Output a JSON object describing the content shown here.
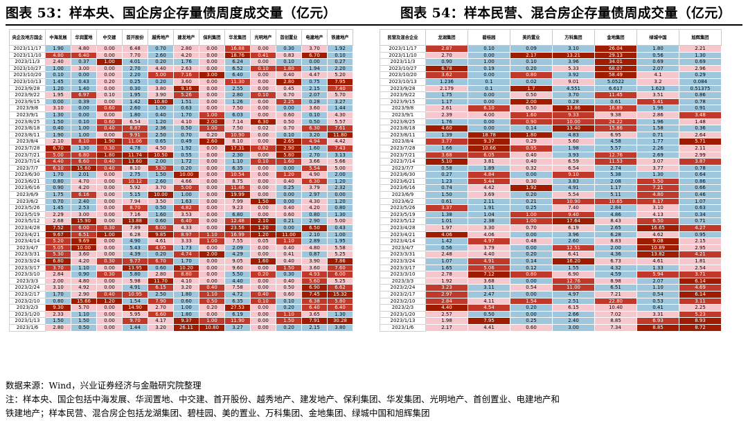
{
  "titles": {
    "left": "图表 53：样本央、国企房企存量债周度成交量（亿元）",
    "right": "图表 54：样本民营、混合房企存量债周成交量（亿元）"
  },
  "left_table": {
    "headers": [
      "央企及地方国企",
      "中海发展",
      "华润置地",
      "中交建",
      "首开股份",
      "越秀地产",
      "建发地产",
      "保利集团",
      "华发集团",
      "光明地产",
      "首创置业",
      "电建地产",
      "铁建地产"
    ],
    "rows": [
      [
        "2023/11/17",
        "1.90",
        "4.80",
        "0.00",
        "6.48",
        "0.70",
        "2.80",
        "0.00",
        "16.88",
        "0.00",
        "0.30",
        "3.70",
        "1.92"
      ],
      [
        "2023/11/10",
        "4.80",
        "6.40",
        "0.00",
        "7.70",
        "2.60",
        "4.20",
        "0.00",
        "18.76",
        "0.41",
        "0.83",
        "6.70",
        "0.10"
      ],
      [
        "2023/11/3",
        "2.40",
        "0.37",
        "1.00",
        "4.01",
        "0.20",
        "1.76",
        "0.00",
        "6.24",
        "0.00",
        "0.10",
        "0.00",
        "0.27"
      ],
      [
        "2023/10/27",
        "1.00",
        "3.00",
        "0.00",
        "2.70",
        "4.40",
        "2.63",
        "0.00",
        "6.52",
        "0.10",
        "1.80",
        "1.94",
        "2.20"
      ],
      [
        "2023/10/20",
        "0.10",
        "0.00",
        "0.00",
        "2.20",
        "5.00",
        "7.16",
        "3.00",
        "6.40",
        "0.00",
        "0.40",
        "4.47",
        "5.20"
      ],
      [
        "2023/10/13",
        "1.45",
        "0.43",
        "0.20",
        "0.25",
        "0.20",
        "3.60",
        "0.00",
        "11.30",
        "0.00",
        "2.80",
        "0.75",
        "7.95"
      ],
      [
        "2023/9/28",
        "1.20",
        "1.40",
        "0.00",
        "0.30",
        "3.80",
        "9.16",
        "0.00",
        "2.55",
        "0.00",
        "0.45",
        "2.15",
        "7.40"
      ],
      [
        "2023/9/22",
        "1.95",
        "6.97",
        "0.10",
        "1.95",
        "3.90",
        "5.26",
        "0.00",
        "2.80",
        "0.10",
        "0.70",
        "2.07",
        "5.70"
      ],
      [
        "2023/9/15",
        "0.00",
        "0.39",
        "0.00",
        "1.42",
        "10.80",
        "1.51",
        "0.00",
        "1.26",
        "0.00",
        "2.25",
        "0.28",
        "3.27"
      ],
      [
        "2023/9/8",
        "3.10",
        "0.00",
        "0.60",
        "2.60",
        "1.00",
        "0.63",
        "0.00",
        "7.50",
        "0.00",
        "0.00",
        "3.60",
        "1.44"
      ],
      [
        "2023/9/1",
        "1.30",
        "0.00",
        "0.00",
        "1.80",
        "0.40",
        "1.70",
        "1.00",
        "6.03",
        "0.00",
        "0.60",
        "0.10",
        "4.30"
      ],
      [
        "2023/8/25",
        "1.50",
        "0.10",
        "0.60",
        "6.54",
        "1.20",
        "4.10",
        "2.00",
        "7.14",
        "6.30",
        "0.50",
        "0.50",
        "5.57"
      ],
      [
        "2023/8/18",
        "0.40",
        "1.00",
        "0.40",
        "8.87",
        "2.36",
        "0.50",
        "1.00",
        "7.50",
        "0.02",
        "0.70",
        "6.30",
        "7.61"
      ],
      [
        "2023/8/11",
        "1.90",
        "1.00",
        "0.00",
        "9.91",
        "2.50",
        "0.70",
        "0.20",
        "10.90",
        "0.00",
        "0.10",
        "3.20",
        "11.80"
      ],
      [
        "2023/8/4",
        "2.10",
        "8.10",
        "1.90",
        "11.06",
        "0.65",
        "0.49",
        "2.60",
        "8.10",
        "0.00",
        "2.65",
        "4.94",
        "4.42"
      ],
      [
        "2023/7/28",
        "6.70",
        "1.30",
        "0.30",
        "4.78",
        "4.50",
        "1.92",
        "0.00",
        "17.31",
        "0.82",
        "2.90",
        "1.60",
        "7.43"
      ],
      [
        "2023/7/21",
        "5.00",
        "6.80",
        "1.80",
        "11.74",
        "10.50",
        "0.55",
        "0.00",
        "2.30",
        "0.00",
        "5.80",
        "2.70",
        "3.13"
      ],
      [
        "2023/7/14",
        "4.40",
        "6.60",
        "0.40",
        "13.60",
        "2.00",
        "1.72",
        "0.00",
        "1.10",
        "0.10",
        "1.60",
        "3.66",
        "5.66"
      ],
      [
        "2023/7/7",
        "6.10",
        "15.60",
        "0.40",
        "8.10",
        "5.30",
        "0.20",
        "0.00",
        "6.35",
        "0.00",
        "0.00",
        "5.54",
        "5.00"
      ],
      [
        "2023/6/30",
        "1.70",
        "2.01",
        "0.00",
        "2.75",
        "1.50",
        "10.00",
        "0.00",
        "10.54",
        "0.00",
        "1.20",
        "4.90",
        "2.00"
      ],
      [
        "2023/6/21",
        "0.80",
        "4.70",
        "0.00",
        "10.12",
        "2.60",
        "4.66",
        "0.00",
        "8.75",
        "0.00",
        "0.40",
        "6.30",
        "1.20"
      ],
      [
        "2023/6/16",
        "0.90",
        "4.20",
        "0.00",
        "5.92",
        "3.70",
        "5.00",
        "0.00",
        "11.46",
        "0.00",
        "0.25",
        "3.79",
        "2.32"
      ],
      [
        "2023/6/9",
        "1.75",
        "6.16",
        "0.00",
        "5.15",
        "10.00",
        "1.00",
        "0.00",
        "19.99",
        "0.00",
        "0.00",
        "2.97",
        "0.00"
      ],
      [
        "2023/6/2",
        "0.70",
        "2.40",
        "0.00",
        "7.94",
        "3.50",
        "1.63",
        "0.00",
        "7.99",
        "1.50",
        "0.00",
        "4.30",
        "1.20"
      ],
      [
        "2023/5/26",
        "1.45",
        "2.53",
        "0.00",
        "8.70",
        "0.50",
        "4.82",
        "0.00",
        "9.23",
        "0.00",
        "0.40",
        "4.20",
        "0.80"
      ],
      [
        "2023/5/19",
        "2.29",
        "3.00",
        "0.00",
        "7.16",
        "1.60",
        "3.53",
        "0.00",
        "6.80",
        "0.00",
        "0.60",
        "0.80",
        "1.30"
      ],
      [
        "2023/5/12",
        "2.68",
        "15.90",
        "0.00",
        "13.88",
        "0.60",
        "6.40",
        "0.00",
        "12.48",
        "2.10",
        "0.21",
        "2.90",
        "5.00"
      ],
      [
        "2023/4/28",
        "7.52",
        "6.00",
        "0.30",
        "7.89",
        "6.00",
        "4.33",
        "0.00",
        "23.56",
        "1.20",
        "0.00",
        "6.50",
        "0.43"
      ],
      [
        "2023/4/21",
        "9.67",
        "6.51",
        "1.00",
        "6.28",
        "9.85",
        "8.97",
        "1.10",
        "16.99",
        "1.20",
        "11.00",
        "2.10",
        "1.00"
      ],
      [
        "2023/4/14",
        "5.20",
        "9.69",
        "0.00",
        "4.90",
        "4.61",
        "3.33",
        "1.00",
        "7.55",
        "0.05",
        "1.10",
        "2.89",
        "1.95"
      ],
      [
        "2023/4/7",
        "5.05",
        "10.00",
        "0.00",
        "5.43",
        "4.95",
        "1.73",
        "0.00",
        "2.09",
        "0.00",
        "0.40",
        "4.80",
        "5.58"
      ],
      [
        "2023/3/31",
        "5.30",
        "3.60",
        "0.00",
        "4.39",
        "0.20",
        "4.74",
        "2.00",
        "4.29",
        "0.00",
        "0.41",
        "0.87",
        "5.25"
      ],
      [
        "2023/3/24",
        "6.80",
        "4.20",
        "0.30",
        "9.77",
        "6.70",
        "1.70",
        "0.00",
        "9.05",
        "1.60",
        "0.40",
        "3.90",
        "7.86"
      ],
      [
        "2023/3/17",
        "3.70",
        "1.10",
        "0.00",
        "13.95",
        "0.60",
        "10.20",
        "0.00",
        "9.60",
        "0.00",
        "1.50",
        "3.60",
        "7.60"
      ],
      [
        "2023/3/10",
        "2.84",
        "0.90",
        "0.30",
        "5.80",
        "2.80",
        "8.80",
        "0.00",
        "5.50",
        "0.20",
        "0.30",
        "4.93",
        "6.00"
      ],
      [
        "2023/3/3",
        "2.00",
        "4.80",
        "0.00",
        "5.98",
        "11.70",
        "4.10",
        "0.00",
        "4.40",
        "0.00",
        "0.40",
        "5.60",
        "5.25"
      ],
      [
        "2023/2/24",
        "3.10",
        "4.92",
        "0.00",
        "4.91",
        "6.15",
        "3.20",
        "0.40",
        "7.58",
        "0.00",
        "0.50",
        "6.90",
        "6.62"
      ],
      [
        "2023/2/17",
        "1.70",
        "2.90",
        "0.40",
        "10.95",
        "2.50",
        "1.80",
        "1.10",
        "4.72",
        "0.40",
        "0.60",
        "7.45",
        "15.32"
      ],
      [
        "2023/2/10",
        "0.80",
        "15.66",
        "1.20",
        "1.54",
        "7.90",
        "0.60",
        "0.50",
        "6.35",
        "0.10",
        "0.10",
        "6.38",
        "5.80"
      ],
      [
        "2023/2/3",
        "9.30",
        "5.70",
        "0.00",
        "14.90",
        "2.70",
        "1.00",
        "0.20",
        "27.53",
        "0.00",
        "0.20",
        "6.40",
        "6.40"
      ],
      [
        "2023/1/20",
        "2.33",
        "1.10",
        "0.00",
        "5.95",
        "6.60",
        "1.80",
        "0.00",
        "6.19",
        "0.00",
        "1.10",
        "3.65",
        "1.30"
      ],
      [
        "2023/1/13",
        "1.50",
        "1.50",
        "0.00",
        "9.70",
        "4.17",
        "9.37",
        "1.00",
        "11.90",
        "0.00",
        "1.50",
        "7.91",
        "30.28"
      ],
      [
        "2023/1/6",
        "2.80",
        "0.50",
        "0.00",
        "1.44",
        "3.20",
        "26.11",
        "10.80",
        "3.27",
        "0.00",
        "0.20",
        "2.15",
        "3.80"
      ]
    ]
  },
  "right_table": {
    "headers": [
      "民营及混合企业",
      "龙湖集团",
      "碧桂园",
      "美的置业",
      "万科集团",
      "金地集团",
      "绿城中国",
      "旭辉集团"
    ],
    "rows": [
      [
        "2023/11/17",
        "2.87",
        "0.10",
        "0.09",
        "3.10",
        "26.04",
        "1.80",
        "2.21"
      ],
      [
        "2023/11/10",
        "2.70",
        "0.00",
        "2.17",
        "13.21",
        "29.13",
        "0.56",
        "1.30"
      ],
      [
        "2023/11/3",
        "0.90",
        "1.00",
        "0.10",
        "3.96",
        "34.01",
        "0.69",
        "0.69"
      ],
      [
        "2023/10/27",
        "6.78",
        "0.19",
        "0.20",
        "5.33",
        "68.07",
        "2.07",
        "2.96"
      ],
      [
        "2023/10/20",
        "3.62",
        "0.00",
        "0.80",
        "3.92",
        "58.49",
        "4.1",
        "0.29"
      ],
      [
        "2023/10/13",
        "1.236",
        "0.1",
        "0.02",
        "9.01",
        "5.0522",
        "3.2",
        "0.084"
      ],
      [
        "2023/9/28",
        "2.179",
        "0.1",
        "1.7",
        "4.551",
        "6.617",
        "1.623",
        "0.51375"
      ],
      [
        "2023/9/22",
        "1.75",
        "0.00",
        "0.50",
        "3.70",
        "11.45",
        "3.51",
        "0.86"
      ],
      [
        "2023/9/15",
        "1.17",
        "0.00",
        "2.00",
        "0.28",
        "0.61",
        "5.41",
        "0.78"
      ],
      [
        "2023/9/8",
        "2.61",
        "6.10",
        "0.50",
        "13.86",
        "16.89",
        "1.96",
        "0.91"
      ],
      [
        "2023/9/1",
        "2.39",
        "4.00",
        "1.60",
        "9.33",
        "9.38",
        "2.86",
        "3.48"
      ],
      [
        "2023/8/25",
        "1.76",
        "0.00",
        "0.90",
        "10.00",
        "24.22",
        "1.96",
        "1.48"
      ],
      [
        "2023/8/18",
        "4.60",
        "0.00",
        "0.14",
        "13.40",
        "15.86",
        "1.58",
        "0.36"
      ],
      [
        "2023/8/11",
        "1.39",
        "18.78",
        "1.80",
        "4.83",
        "6.95",
        "0.71",
        "2.64"
      ],
      [
        "2023/8/4",
        "3.77",
        "9.37",
        "0.29",
        "5.60",
        "4.58",
        "1.77",
        "5.71"
      ],
      [
        "2023/7/28",
        "1.66",
        "10.66",
        "0.95",
        "1.98",
        "5.57",
        "2.26",
        "2.11"
      ],
      [
        "2023/7/21",
        "3.68",
        "6.05",
        "0.40",
        "3.93",
        "12.76",
        "2.69",
        "2.99"
      ],
      [
        "2023/7/14",
        "5.10",
        "3.81",
        "0.40",
        "6.59",
        "11.53",
        "3.07",
        "3.87"
      ],
      [
        "2023/7/7",
        "0.58",
        "1.89",
        "0.32",
        "6.54",
        "2.74",
        "3.77",
        "0.78"
      ],
      [
        "2023/6/30",
        "0.27",
        "4.84",
        "0.00",
        "9.10",
        "5.38",
        "1.30",
        "0.64"
      ],
      [
        "2023/6/21",
        "1.23",
        "5.44",
        "0.30",
        "3.83",
        "2.08",
        "5.50",
        "0.86"
      ],
      [
        "2023/6/16",
        "0.74",
        "4.42",
        "1.92",
        "4.91",
        "1.17",
        "7.21",
        "0.66"
      ],
      [
        "2023/6/9",
        "1.50",
        "3.69",
        "0.20",
        "5.54",
        "5.11",
        "4.80",
        "0.46"
      ],
      [
        "2023/6/2",
        "0.61",
        "2.11",
        "0.21",
        "10.90",
        "10.65",
        "8.17",
        "1.07"
      ],
      [
        "2023/5/26",
        "3.37",
        "1.91",
        "0.25",
        "7.40",
        "2.84",
        "3.10",
        "0.63"
      ],
      [
        "2023/5/19",
        "1.38",
        "1.04",
        "1.00",
        "9.40",
        "4.86",
        "4.13",
        "0.34"
      ],
      [
        "2023/5/12",
        "1.01",
        "2.38",
        "1.00",
        "17.64",
        "8.43",
        "6.50",
        "0.71"
      ],
      [
        "2023/4/28",
        "1.97",
        "3.30",
        "0.70",
        "6.19",
        "2.65",
        "16.65",
        "4.27"
      ],
      [
        "2023/4/21",
        "4.06",
        "4.06",
        "0.00",
        "3.96",
        "6.28",
        "4.62",
        "0.95"
      ],
      [
        "2023/4/14",
        "1.42",
        "4.97",
        "0.48",
        "2.60",
        "8.83",
        "9.08",
        "2.15"
      ],
      [
        "2023/4/7",
        "0.56",
        "3.79",
        "0.00",
        "12.51",
        "2.00",
        "10.89",
        "2.95"
      ],
      [
        "2023/3/31",
        "2.48",
        "4.40",
        "0.20",
        "6.41",
        "4.36",
        "13.82",
        "4.21"
      ],
      [
        "2023/3/24",
        "1.07",
        "4.91",
        "0.14",
        "16.20",
        "6.73",
        "4.61",
        "1.81"
      ],
      [
        "2023/3/17",
        "1.65",
        "5.06",
        "0.12",
        "1.55",
        "4.32",
        "1.33",
        "2.54"
      ],
      [
        "2023/3/10",
        "2.78",
        "7.12",
        "0.80",
        "6.90",
        "4.59",
        "5.94",
        "3.71"
      ],
      [
        "2023/3/3",
        "1.92",
        "3.68",
        "0.00",
        "12.76",
        "8.98",
        "2.07",
        "6.14"
      ],
      [
        "2023/2/24",
        "3.23",
        "3.11",
        "0.54",
        "11.00",
        "6.51",
        "1.10",
        "4.69"
      ],
      [
        "2023/2/17",
        "2.97",
        "2.47",
        "0.00",
        "4.97",
        "7.21",
        "0.54",
        "6.14"
      ],
      [
        "2023/2/10",
        "2.84",
        "4.11",
        "1.54",
        "2.51",
        "22.80",
        "0.53",
        "3.11"
      ],
      [
        "2023/2/3",
        "4.40",
        "4.54",
        "0.20",
        "6.15",
        "10.40",
        "0.41",
        "2.25"
      ],
      [
        "2023/1/20",
        "2.57",
        "0.50",
        "0.00",
        "2.66",
        "7.02",
        "3.31",
        "5.23"
      ],
      [
        "2023/1/13",
        "1.98",
        "7.95",
        "0.25",
        "2.40",
        "8.85",
        "6.93",
        "8.93"
      ],
      [
        "2023/1/6",
        "2.17",
        "4.41",
        "0.60",
        "3.00",
        "7.34",
        "8.85",
        "8.72"
      ]
    ]
  },
  "colors": {
    "low": "#9ec7dd",
    "mid": "#f6c7cd",
    "high": "#c0392b",
    "very_high": "#a01c00"
  },
  "footer": {
    "source": "数据来源：Wind，兴业证券经济与金融研究院整理",
    "note_line1": "注：样本央、国企包括中海发展、华润置地、中交建、首开股份、越秀地产、建发地产、保利集团、华发集团、光明地产、首创置业、电建地产和",
    "note_line2": "铁建地产；样本民营、混合房企包括龙湖集团、碧桂园、美的置业、万科集团、金地集团、绿城中国和旭辉集团"
  }
}
